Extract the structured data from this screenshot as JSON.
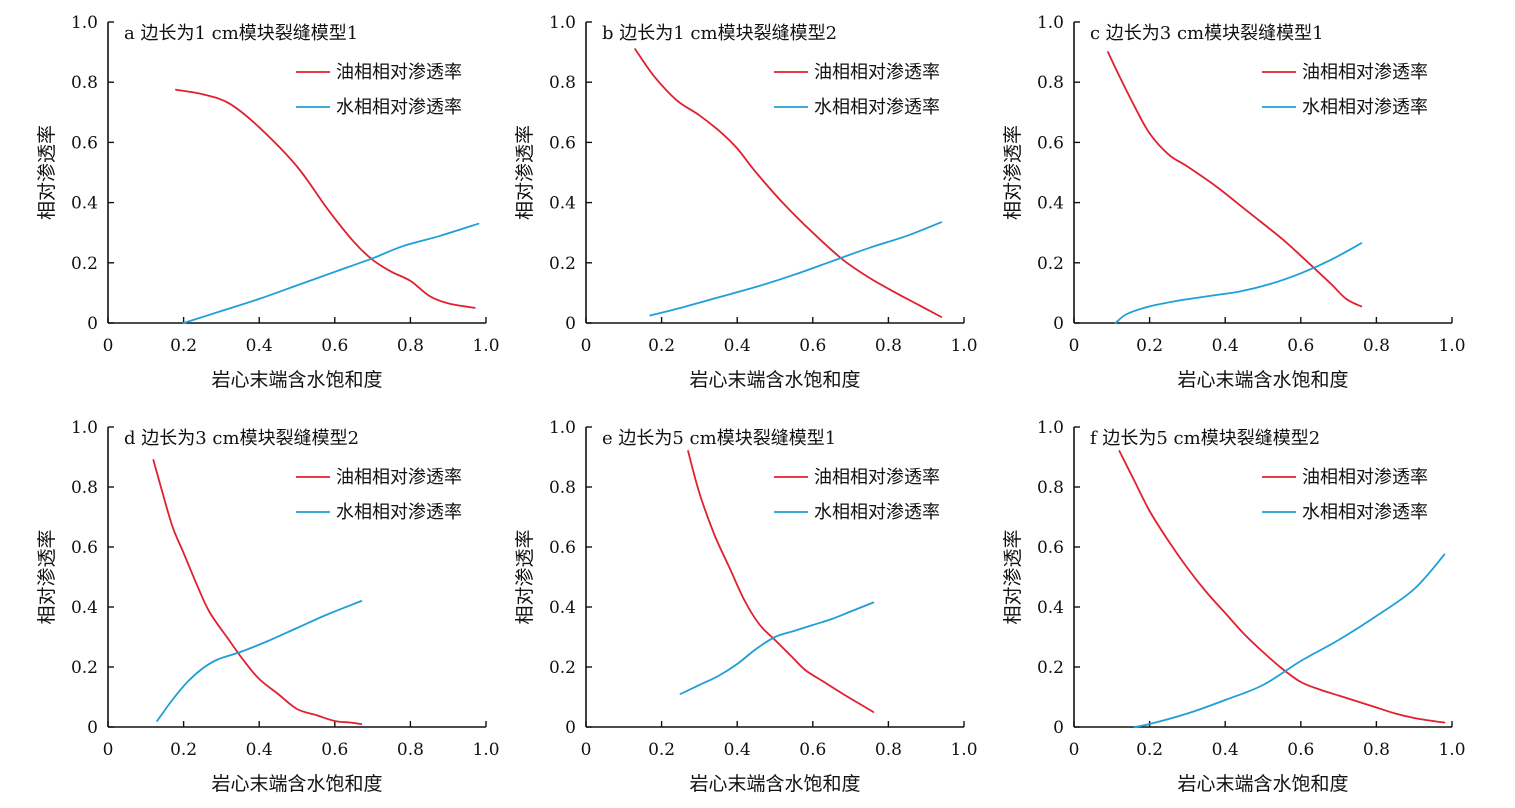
{
  "colors": {
    "oil": "#e0202e",
    "water": "#1f9fd8",
    "axis": "#111111"
  },
  "chart_data": [
    {
      "type": "line",
      "title": "a 边长为1 cm模块裂缝模型1",
      "xlabel": "岩心末端含水饱和度",
      "ylabel": "相对渗透率",
      "xlim": [
        0,
        1
      ],
      "ylim": [
        0,
        1
      ],
      "xticks": [
        "0",
        "0.2",
        "0.4",
        "0.6",
        "0.8",
        "1.0"
      ],
      "yticks": [
        "0",
        "0.2",
        "0.4",
        "0.6",
        "0.8",
        "1.0"
      ],
      "legend": "top-right",
      "series": [
        {
          "name": "油相相对渗透率",
          "color": "oil",
          "x": [
            0.18,
            0.25,
            0.32,
            0.4,
            0.5,
            0.58,
            0.65,
            0.7,
            0.75,
            0.8,
            0.85,
            0.9,
            0.97
          ],
          "y": [
            0.775,
            0.76,
            0.73,
            0.65,
            0.52,
            0.38,
            0.27,
            0.21,
            0.17,
            0.14,
            0.09,
            0.065,
            0.05
          ]
        },
        {
          "name": "水相相对渗透率",
          "color": "water",
          "x": [
            0.2,
            0.3,
            0.4,
            0.5,
            0.6,
            0.7,
            0.78,
            0.88,
            0.98
          ],
          "y": [
            0.0,
            0.04,
            0.08,
            0.125,
            0.17,
            0.215,
            0.255,
            0.29,
            0.33
          ]
        }
      ]
    },
    {
      "type": "line",
      "title": "b 边长为1 cm模块裂缝模型2",
      "xlabel": "岩心末端含水饱和度",
      "ylabel": "相对渗透率",
      "xlim": [
        0,
        1
      ],
      "ylim": [
        0,
        1
      ],
      "xticks": [
        "0",
        "0.2",
        "0.4",
        "0.6",
        "0.8",
        "1.0"
      ],
      "yticks": [
        "0",
        "0.2",
        "0.4",
        "0.6",
        "0.8",
        "1.0"
      ],
      "legend": "top-right",
      "series": [
        {
          "name": "油相相对渗透率",
          "color": "oil",
          "x": [
            0.13,
            0.18,
            0.24,
            0.3,
            0.36,
            0.4,
            0.45,
            0.52,
            0.6,
            0.68,
            0.75,
            0.82,
            0.88,
            0.94
          ],
          "y": [
            0.91,
            0.82,
            0.74,
            0.69,
            0.63,
            0.58,
            0.5,
            0.4,
            0.3,
            0.21,
            0.15,
            0.1,
            0.06,
            0.02
          ]
        },
        {
          "name": "水相相对渗透率",
          "color": "water",
          "x": [
            0.17,
            0.25,
            0.35,
            0.45,
            0.55,
            0.65,
            0.75,
            0.85,
            0.94
          ],
          "y": [
            0.025,
            0.05,
            0.085,
            0.12,
            0.16,
            0.205,
            0.25,
            0.29,
            0.335
          ]
        }
      ]
    },
    {
      "type": "line",
      "title": "c 边长为3 cm模块裂缝模型1",
      "xlabel": "岩心末端含水饱和度",
      "ylabel": "相对渗透率",
      "xlim": [
        0,
        1
      ],
      "ylim": [
        0,
        1
      ],
      "xticks": [
        "0",
        "0.2",
        "0.4",
        "0.6",
        "0.8",
        "1.0"
      ],
      "yticks": [
        "0",
        "0.2",
        "0.4",
        "0.6",
        "0.8",
        "1.0"
      ],
      "legend": "top-right",
      "series": [
        {
          "name": "油相相对渗透率",
          "color": "oil",
          "x": [
            0.09,
            0.12,
            0.16,
            0.2,
            0.25,
            0.3,
            0.38,
            0.46,
            0.55,
            0.62,
            0.68,
            0.72,
            0.76
          ],
          "y": [
            0.9,
            0.82,
            0.72,
            0.63,
            0.56,
            0.52,
            0.45,
            0.37,
            0.28,
            0.2,
            0.13,
            0.08,
            0.055
          ]
        },
        {
          "name": "水相相对渗透率",
          "color": "water",
          "x": [
            0.11,
            0.14,
            0.2,
            0.28,
            0.36,
            0.44,
            0.52,
            0.6,
            0.68,
            0.76
          ],
          "y": [
            0.0,
            0.03,
            0.055,
            0.075,
            0.09,
            0.105,
            0.13,
            0.165,
            0.21,
            0.265
          ]
        }
      ]
    },
    {
      "type": "line",
      "title": "d 边长为3 cm模块裂缝模型2",
      "xlabel": "岩心末端含水饱和度",
      "ylabel": "相对渗透率",
      "xlim": [
        0,
        1
      ],
      "ylim": [
        0,
        1
      ],
      "xticks": [
        "0",
        "0.2",
        "0.4",
        "0.6",
        "0.8",
        "1.0"
      ],
      "yticks": [
        "0",
        "0.2",
        "0.4",
        "0.6",
        "0.8",
        "1.0"
      ],
      "legend": "top-right",
      "series": [
        {
          "name": "油相相对渗透率",
          "color": "oil",
          "x": [
            0.12,
            0.14,
            0.17,
            0.2,
            0.24,
            0.27,
            0.32,
            0.36,
            0.4,
            0.45,
            0.5,
            0.55,
            0.6,
            0.64,
            0.67
          ],
          "y": [
            0.89,
            0.8,
            0.67,
            0.58,
            0.46,
            0.38,
            0.29,
            0.22,
            0.16,
            0.11,
            0.06,
            0.04,
            0.02,
            0.015,
            0.01
          ]
        },
        {
          "name": "水相相对渗透率",
          "color": "water",
          "x": [
            0.13,
            0.17,
            0.21,
            0.25,
            0.29,
            0.35,
            0.42,
            0.5,
            0.58,
            0.67
          ],
          "y": [
            0.02,
            0.09,
            0.15,
            0.195,
            0.225,
            0.25,
            0.285,
            0.33,
            0.375,
            0.42
          ]
        }
      ]
    },
    {
      "type": "line",
      "title": "e 边长为5 cm模块裂缝模型1",
      "xlabel": "岩心末端含水饱和度",
      "ylabel": "相对渗透率",
      "xlim": [
        0,
        1
      ],
      "ylim": [
        0,
        1
      ],
      "xticks": [
        "0",
        "0.2",
        "0.4",
        "0.6",
        "0.8",
        "1.0"
      ],
      "yticks": [
        "0",
        "0.2",
        "0.4",
        "0.6",
        "0.8",
        "1.0"
      ],
      "legend": "top-right",
      "series": [
        {
          "name": "油相相对渗透率",
          "color": "oil",
          "x": [
            0.27,
            0.3,
            0.34,
            0.38,
            0.42,
            0.46,
            0.5,
            0.54,
            0.58,
            0.63,
            0.68,
            0.72,
            0.76
          ],
          "y": [
            0.92,
            0.78,
            0.64,
            0.53,
            0.42,
            0.34,
            0.29,
            0.24,
            0.19,
            0.15,
            0.11,
            0.08,
            0.05
          ]
        },
        {
          "name": "水相相对渗透率",
          "color": "water",
          "x": [
            0.25,
            0.3,
            0.35,
            0.4,
            0.45,
            0.5,
            0.55,
            0.6,
            0.65,
            0.7,
            0.76
          ],
          "y": [
            0.11,
            0.14,
            0.17,
            0.21,
            0.26,
            0.3,
            0.32,
            0.34,
            0.36,
            0.385,
            0.415
          ]
        }
      ]
    },
    {
      "type": "line",
      "title": "f 边长为5 cm模块裂缝模型2",
      "xlabel": "岩心末端含水饱和度",
      "ylabel": "相对渗透率",
      "xlim": [
        0,
        1
      ],
      "ylim": [
        0,
        1
      ],
      "xticks": [
        "0",
        "0.2",
        "0.4",
        "0.6",
        "0.8",
        "1.0"
      ],
      "yticks": [
        "0",
        "0.2",
        "0.4",
        "0.6",
        "0.8",
        "1.0"
      ],
      "legend": "top-right",
      "series": [
        {
          "name": "油相相对渗透率",
          "color": "oil",
          "x": [
            0.12,
            0.16,
            0.2,
            0.25,
            0.3,
            0.35,
            0.4,
            0.45,
            0.5,
            0.55,
            0.6,
            0.65,
            0.7,
            0.75,
            0.8,
            0.85,
            0.9,
            0.95,
            0.98
          ],
          "y": [
            0.92,
            0.82,
            0.72,
            0.62,
            0.53,
            0.45,
            0.38,
            0.31,
            0.25,
            0.195,
            0.15,
            0.125,
            0.105,
            0.085,
            0.065,
            0.045,
            0.03,
            0.02,
            0.015
          ]
        },
        {
          "name": "水相相对渗透率",
          "color": "water",
          "x": [
            0.16,
            0.2,
            0.3,
            0.4,
            0.5,
            0.6,
            0.7,
            0.8,
            0.9,
            0.98
          ],
          "y": [
            0.0,
            0.01,
            0.045,
            0.09,
            0.14,
            0.22,
            0.29,
            0.37,
            0.46,
            0.575
          ]
        }
      ]
    }
  ]
}
